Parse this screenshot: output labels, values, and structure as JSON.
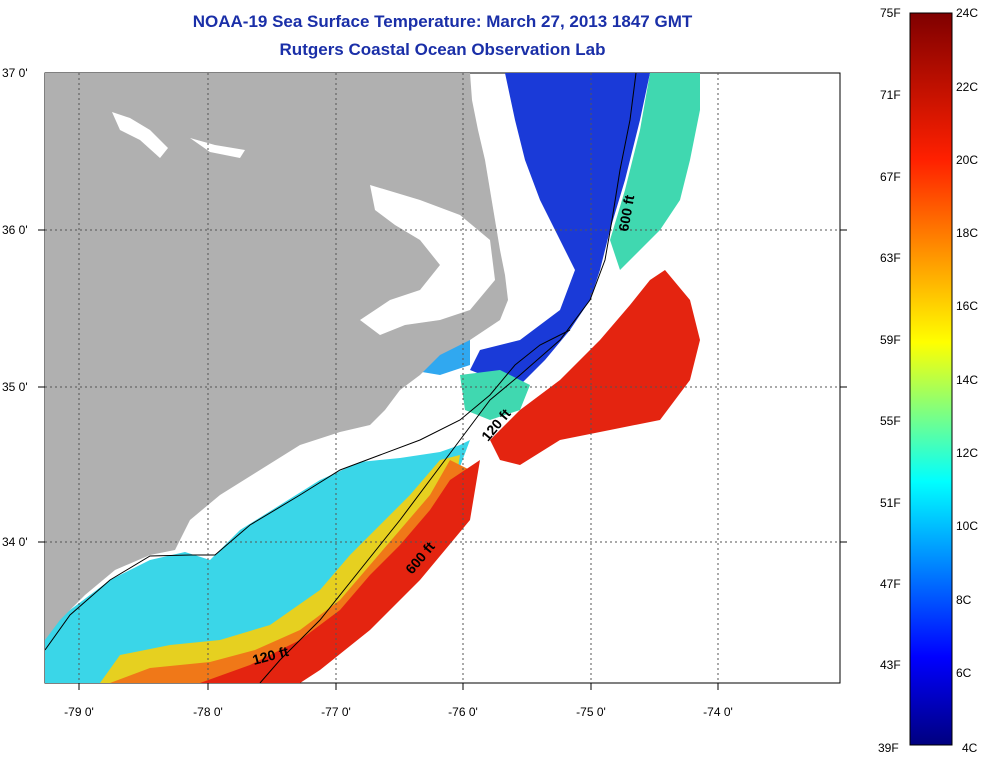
{
  "title": {
    "line1": "NOAA-19 Sea Surface Temperature:  March 27, 2013 1847 GMT",
    "line2": "Rutgers Coastal Ocean Observation Lab"
  },
  "axes": {
    "lat_labels": [
      "37 0'",
      "36 0'",
      "35 0'",
      "34 0'"
    ],
    "lon_labels": [
      "-79 0'",
      "-78 0'",
      "-77 0'",
      "-76 0'",
      "-75 0'",
      "-74 0'"
    ]
  },
  "contour_labels": [
    "600 ft",
    "120 ft",
    "600 ft",
    "120 ft"
  ],
  "colorbar": {
    "fahrenheit": [
      "75F",
      "71F",
      "67F",
      "63F",
      "59F",
      "55F",
      "51F",
      "47F",
      "43F",
      "39F"
    ],
    "celsius": [
      "24C",
      "22C",
      "20C",
      "18C",
      "16C",
      "14C",
      "12C",
      "10C",
      "8C",
      "6C",
      "4C"
    ]
  },
  "colors": {
    "land": "#b0b0b0",
    "cold": "#1030d0",
    "cool": "#30d0f0",
    "mild": "#e8e020",
    "warm": "#f07010",
    "hot": "#e02010",
    "title": "#1a2fa8"
  }
}
